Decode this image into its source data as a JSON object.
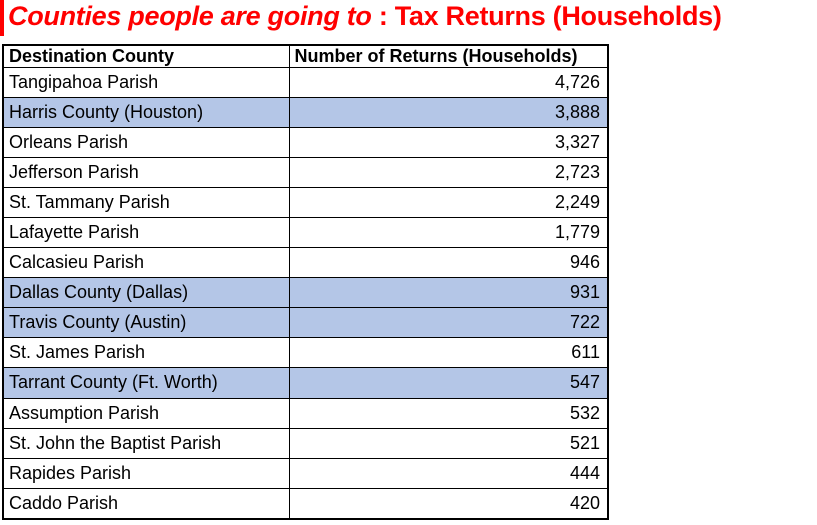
{
  "title": {
    "italic": "Counties people are going to",
    "rest": " : Tax Returns (Households)"
  },
  "table": {
    "headers": [
      "Destination County",
      "Number of Returns (Households)"
    ],
    "rows": [
      {
        "county": "Tangipahoa Parish",
        "returns": "4,726",
        "highlighted": false
      },
      {
        "county": "Harris County (Houston)",
        "returns": "3,888",
        "highlighted": true
      },
      {
        "county": "Orleans Parish",
        "returns": "3,327",
        "highlighted": false
      },
      {
        "county": "Jefferson Parish",
        "returns": "2,723",
        "highlighted": false
      },
      {
        "county": "St. Tammany Parish",
        "returns": "2,249",
        "highlighted": false
      },
      {
        "county": "Lafayette Parish",
        "returns": "1,779",
        "highlighted": false
      },
      {
        "county": "Calcasieu Parish",
        "returns": "946",
        "highlighted": false
      },
      {
        "county": "Dallas County (Dallas)",
        "returns": "931",
        "highlighted": true
      },
      {
        "county": "Travis County (Austin)",
        "returns": "722",
        "highlighted": true
      },
      {
        "county": "St. James Parish",
        "returns": "611",
        "highlighted": false
      },
      {
        "county": "Tarrant County (Ft. Worth)",
        "returns": "547",
        "highlighted": true
      },
      {
        "county": "Assumption Parish",
        "returns": "532",
        "highlighted": false
      },
      {
        "county": "St. John the Baptist Parish",
        "returns": "521",
        "highlighted": false
      },
      {
        "county": "Rapides Parish",
        "returns": "444",
        "highlighted": false
      },
      {
        "county": "Caddo Parish",
        "returns": "420",
        "highlighted": false
      }
    ]
  },
  "colors": {
    "title_red": "#ff0000",
    "highlight_blue": "#b4c6e7",
    "border_black": "#000000"
  },
  "chart_data": {
    "type": "table",
    "title": "Counties people are going to : Tax Returns (Households)",
    "columns": [
      "Destination County",
      "Number of Returns (Households)"
    ],
    "categories": [
      "Tangipahoa Parish",
      "Harris County (Houston)",
      "Orleans Parish",
      "Jefferson Parish",
      "St. Tammany Parish",
      "Lafayette Parish",
      "Calcasieu Parish",
      "Dallas County (Dallas)",
      "Travis County (Austin)",
      "St. James Parish",
      "Tarrant County (Ft. Worth)",
      "Assumption Parish",
      "St. John the Baptist Parish",
      "Rapides Parish",
      "Caddo Parish"
    ],
    "values": [
      4726,
      3888,
      3327,
      2723,
      2249,
      1779,
      946,
      931,
      722,
      611,
      547,
      532,
      521,
      444,
      420
    ],
    "highlighted_rows": [
      "Harris County (Houston)",
      "Dallas County (Dallas)",
      "Travis County (Austin)",
      "Tarrant County (Ft. Worth)"
    ],
    "highlight_meaning": "Texas counties (out-of-state destinations) shaded blue"
  }
}
